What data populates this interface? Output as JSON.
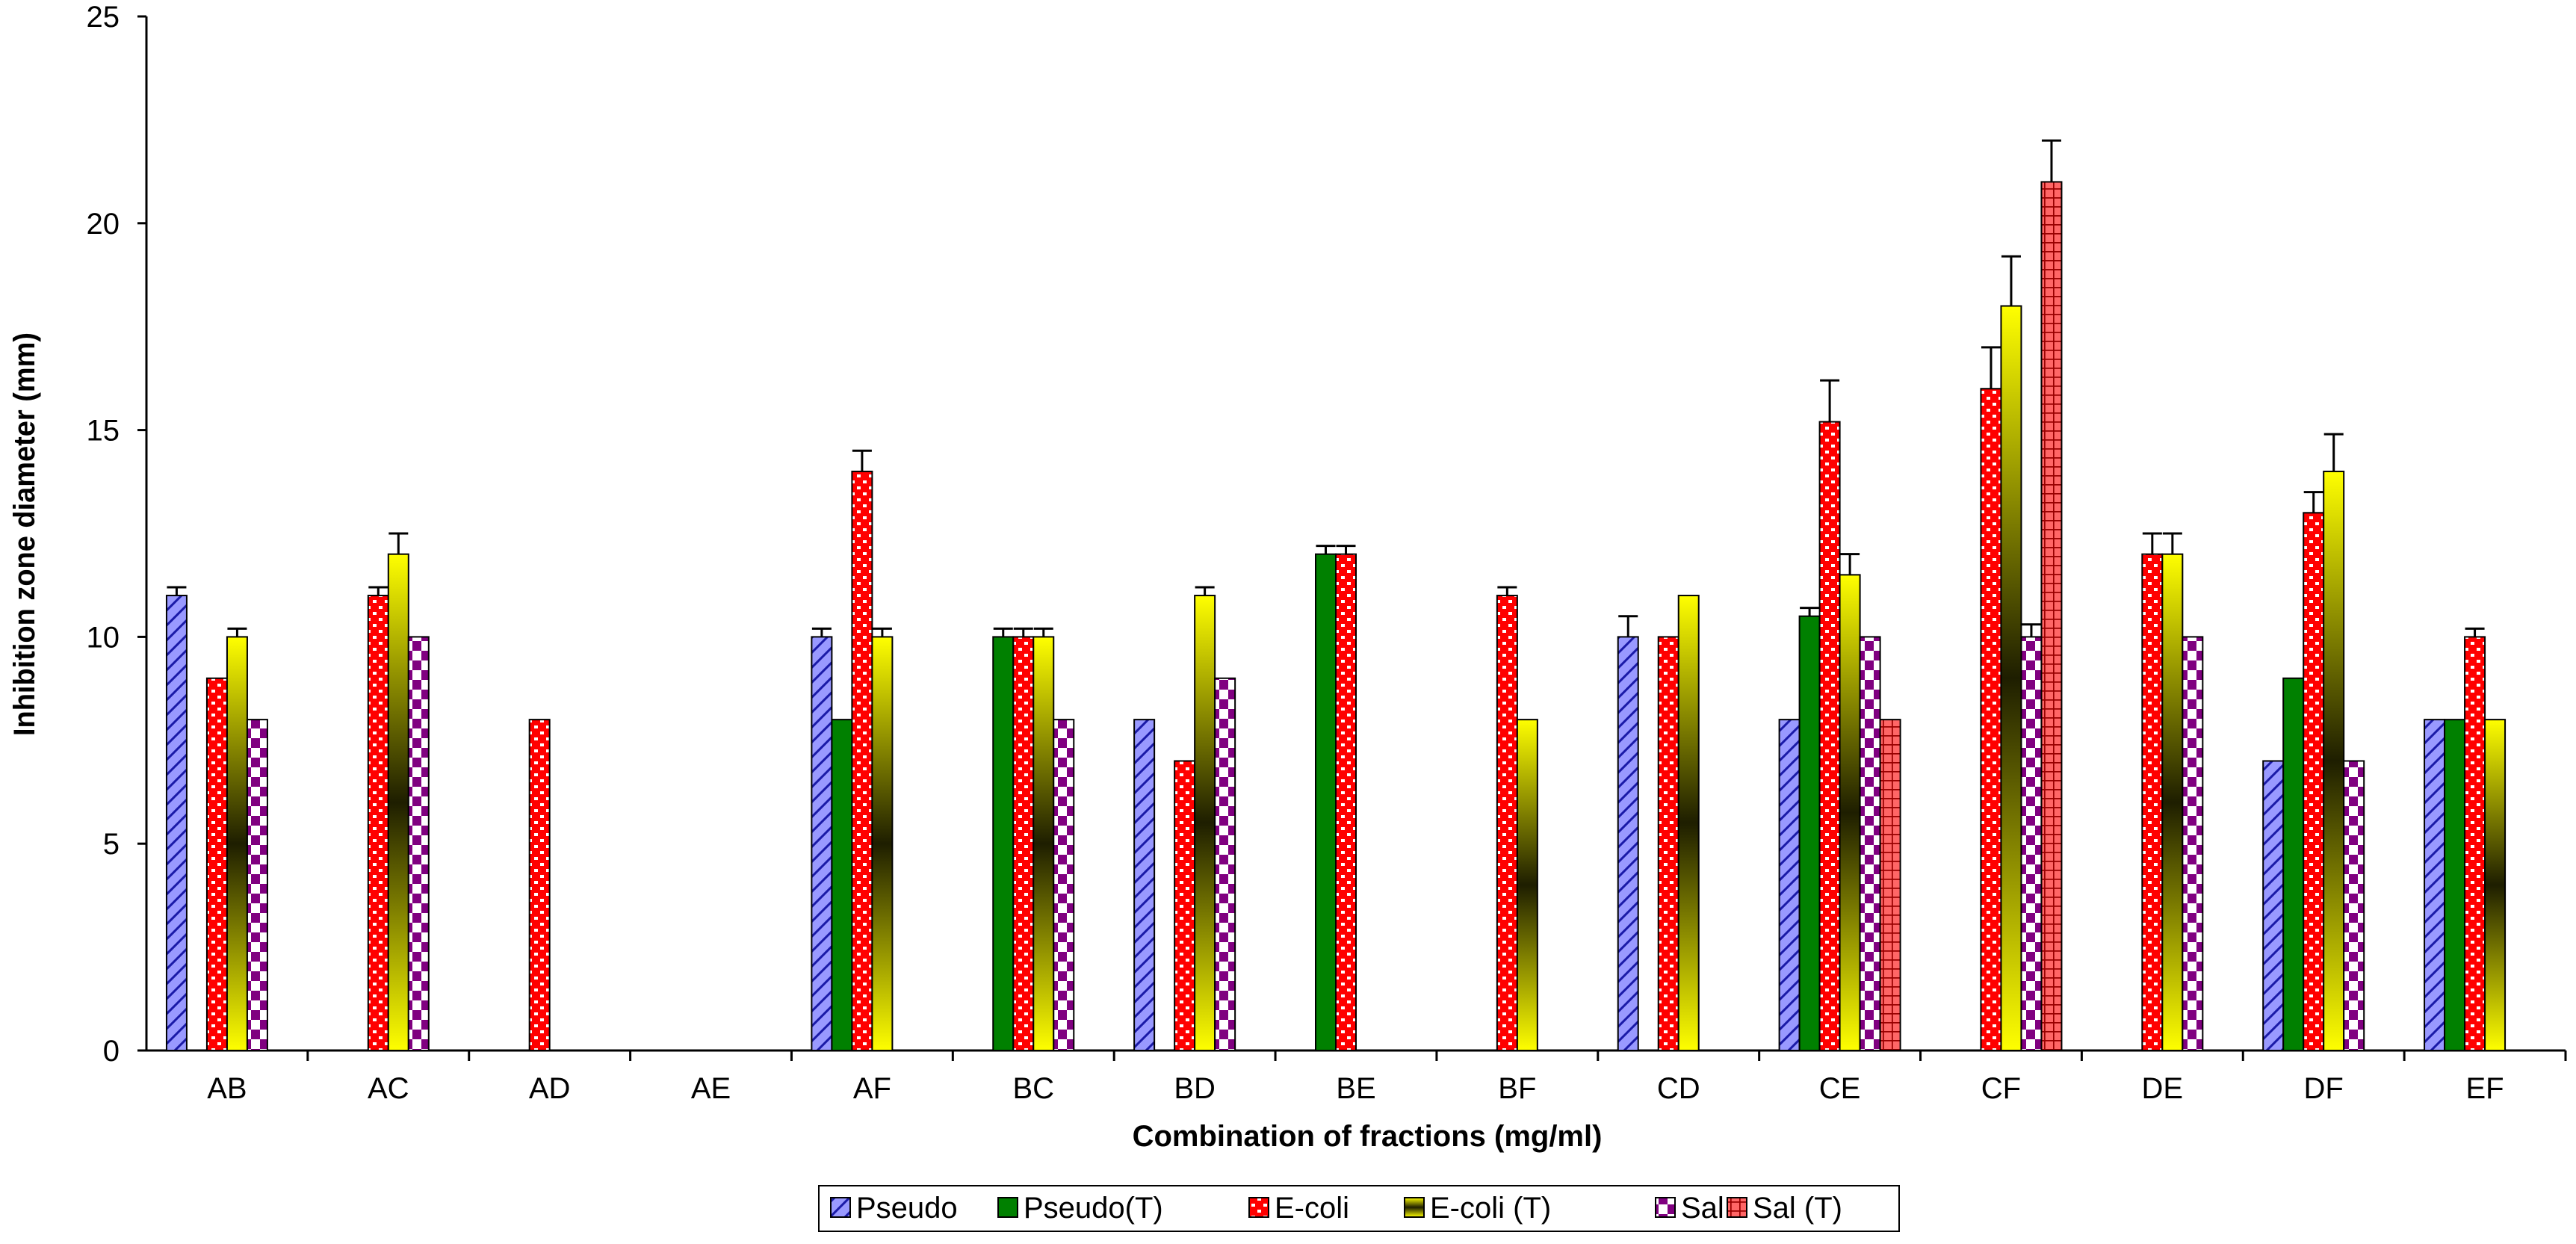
{
  "chart_data": {
    "type": "bar",
    "title": "",
    "xlabel": "Combination of fractions (mg/ml)",
    "ylabel": "Inhibition zone diameter (mm)",
    "ylim": [
      0,
      25
    ],
    "yticks": [
      0,
      5,
      10,
      15,
      20,
      25
    ],
    "grid": false,
    "legend_position": "bottom",
    "categories": [
      "AB",
      "AC",
      "AD",
      "AE",
      "AF",
      "BC",
      "BD",
      "BE",
      "BF",
      "CD",
      "CE",
      "CF",
      "DE",
      "DF",
      "EF"
    ],
    "series": [
      {
        "name": "Pseudo",
        "key": "pseudo",
        "fill": "#9999ff",
        "pattern": "diag",
        "values": [
          11,
          0,
          0,
          0,
          10,
          0,
          8,
          0,
          0,
          10,
          8,
          0,
          0,
          7,
          8
        ],
        "errors": [
          0.2,
          0,
          0,
          0,
          0.2,
          0,
          0,
          0,
          0,
          0.5,
          0,
          0,
          0,
          0,
          0
        ]
      },
      {
        "name": "Pseudo(T)",
        "key": "pseudoT",
        "fill": "#008000",
        "pattern": "solid",
        "values": [
          0,
          0,
          0,
          0,
          8,
          10,
          0,
          12,
          0,
          0,
          10.5,
          0,
          0,
          9,
          8
        ],
        "errors": [
          0,
          0,
          0,
          0,
          0,
          0.2,
          0,
          0.2,
          0,
          0,
          0.2,
          0,
          0,
          0,
          0
        ]
      },
      {
        "name": "E-coli",
        "key": "ecoli",
        "fill": "#ff0000",
        "pattern": "dots",
        "values": [
          9,
          11,
          8,
          0,
          14,
          10,
          7,
          12,
          11,
          10,
          15.2,
          16,
          12,
          13,
          10
        ],
        "errors": [
          0,
          0.2,
          0,
          0,
          0.5,
          0.2,
          0,
          0.2,
          0.2,
          0,
          1.0,
          1.0,
          0.5,
          0.5,
          0.2
        ]
      },
      {
        "name": "E-coli (T)",
        "key": "ecoliT",
        "fill": "#ffff00",
        "pattern": "gradient",
        "values": [
          10,
          12,
          0,
          0,
          10,
          10,
          11,
          0,
          8,
          11,
          11.5,
          18,
          12,
          14,
          8
        ],
        "errors": [
          0.2,
          0.5,
          0,
          0,
          0.2,
          0.2,
          0.2,
          0,
          0,
          0,
          0.5,
          1.2,
          0.5,
          0.9,
          0
        ]
      },
      {
        "name": "Sal",
        "key": "sal",
        "fill": "#800080",
        "pattern": "checker",
        "values": [
          8,
          10,
          0,
          0,
          0,
          8,
          9,
          0,
          0,
          0,
          10,
          10,
          10,
          7,
          0
        ],
        "errors": [
          0,
          0,
          0,
          0,
          0,
          0,
          0,
          0,
          0,
          0,
          0,
          0.3,
          0,
          0,
          0
        ]
      },
      {
        "name": "Sal (T)",
        "key": "salT",
        "fill": "#ff6666",
        "pattern": "grid",
        "values": [
          0,
          0,
          0,
          0,
          0,
          0,
          0,
          0,
          0,
          0,
          8,
          21,
          0,
          0,
          0
        ],
        "errors": [
          0,
          0,
          0,
          0,
          0,
          0,
          0,
          0,
          0,
          0,
          0,
          1.0,
          0,
          0,
          0
        ]
      }
    ]
  }
}
